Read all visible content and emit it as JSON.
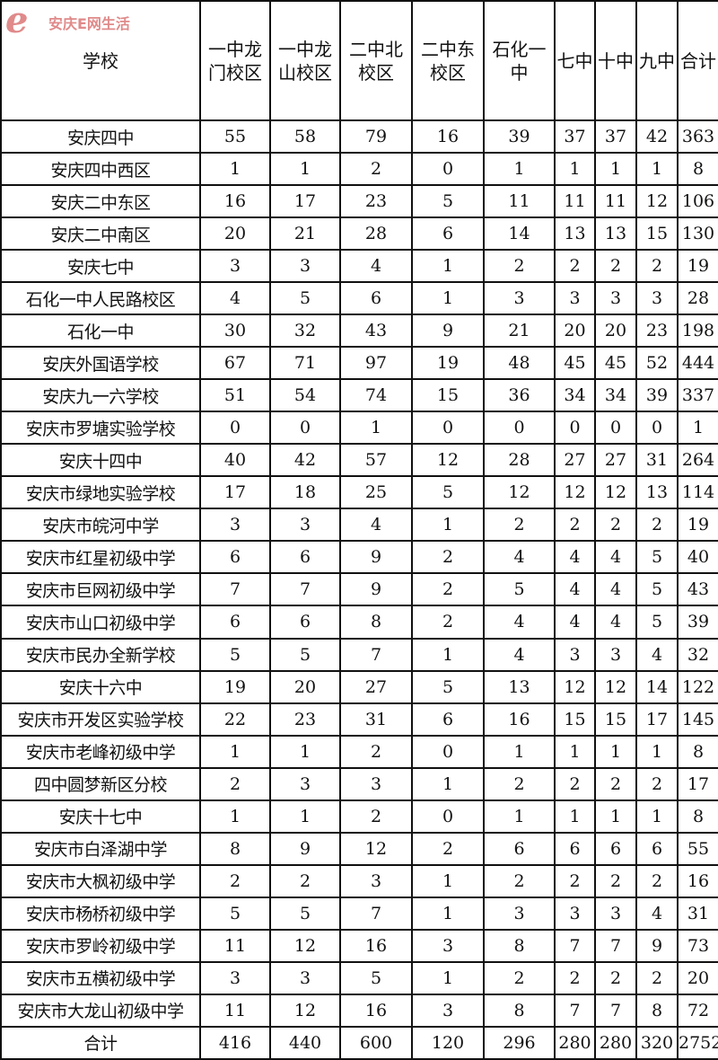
{
  "table": {
    "headers": [
      "学校",
      "一中龙门校区",
      "一中龙山校区",
      "二中北校区",
      "二中东校区",
      "石化一中",
      "七中",
      "十中",
      "九中",
      "合计"
    ],
    "rows": [
      [
        "安庆四中",
        55,
        58,
        79,
        16,
        39,
        37,
        37,
        42,
        363
      ],
      [
        "安庆四中西区",
        1,
        1,
        2,
        0,
        1,
        1,
        1,
        1,
        8
      ],
      [
        "安庆二中东区",
        16,
        17,
        23,
        5,
        11,
        11,
        11,
        12,
        106
      ],
      [
        "安庆二中南区",
        20,
        21,
        28,
        6,
        14,
        13,
        13,
        15,
        130
      ],
      [
        "安庆七中",
        3,
        3,
        4,
        1,
        2,
        2,
        2,
        2,
        19
      ],
      [
        "石化一中人民路校区",
        4,
        5,
        6,
        1,
        3,
        3,
        3,
        3,
        28
      ],
      [
        "石化一中",
        30,
        32,
        43,
        9,
        21,
        20,
        20,
        23,
        198
      ],
      [
        "安庆外国语学校",
        67,
        71,
        97,
        19,
        48,
        45,
        45,
        52,
        444
      ],
      [
        "安庆九一六学校",
        51,
        54,
        74,
        15,
        36,
        34,
        34,
        39,
        337
      ],
      [
        "安庆市罗塘实验学校",
        0,
        0,
        1,
        0,
        0,
        0,
        0,
        0,
        1
      ],
      [
        "安庆十四中",
        40,
        42,
        57,
        12,
        28,
        27,
        27,
        31,
        264
      ],
      [
        "安庆市绿地实验学校",
        17,
        18,
        25,
        5,
        12,
        12,
        12,
        13,
        114
      ],
      [
        "安庆市皖河中学",
        3,
        3,
        4,
        1,
        2,
        2,
        2,
        2,
        19
      ],
      [
        "安庆市红星初级中学",
        6,
        6,
        9,
        2,
        4,
        4,
        4,
        5,
        40
      ],
      [
        "安庆市巨网初级中学",
        7,
        7,
        9,
        2,
        5,
        4,
        4,
        5,
        43
      ],
      [
        "安庆市山口初级中学",
        6,
        6,
        8,
        2,
        4,
        4,
        4,
        5,
        39
      ],
      [
        "安庆市民办全新学校",
        5,
        5,
        7,
        1,
        4,
        3,
        3,
        4,
        32
      ],
      [
        "安庆十六中",
        19,
        20,
        27,
        5,
        13,
        12,
        12,
        14,
        122
      ],
      [
        "安庆市开发区实验学校",
        22,
        23,
        31,
        6,
        16,
        15,
        15,
        17,
        145
      ],
      [
        "安庆市老峰初级中学",
        1,
        1,
        2,
        0,
        1,
        1,
        1,
        1,
        8
      ],
      [
        "四中圆梦新区分校",
        2,
        3,
        3,
        1,
        2,
        2,
        2,
        2,
        17
      ],
      [
        "安庆十七中",
        1,
        1,
        2,
        0,
        1,
        1,
        1,
        1,
        8
      ],
      [
        "安庆市白泽湖中学",
        8,
        9,
        12,
        2,
        6,
        6,
        6,
        6,
        55
      ],
      [
        "安庆市大枫初级中学",
        2,
        2,
        3,
        1,
        2,
        2,
        2,
        2,
        16
      ],
      [
        "安庆市杨桥初级中学",
        5,
        5,
        7,
        1,
        3,
        3,
        3,
        4,
        31
      ],
      [
        "安庆市罗岭初级中学",
        11,
        12,
        16,
        3,
        8,
        7,
        7,
        9,
        73
      ],
      [
        "安庆市五横初级中学",
        3,
        3,
        5,
        1,
        2,
        2,
        2,
        2,
        20
      ],
      [
        "安庆市大龙山初级中学",
        11,
        12,
        16,
        3,
        8,
        7,
        7,
        8,
        72
      ]
    ],
    "total_row": [
      "合计",
      416,
      440,
      600,
      120,
      296,
      280,
      280,
      320,
      2752
    ]
  },
  "watermark": {
    "logo": "e",
    "text": "安庆E网生活"
  }
}
